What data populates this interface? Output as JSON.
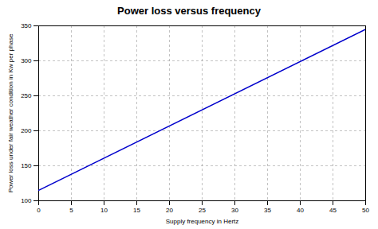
{
  "chart_data": {
    "type": "line",
    "title": "Power loss versus frequency",
    "xlabel": "Supply frequency in Hertz",
    "ylabel": "Power loss under fair weather condition in Kw per phase",
    "x": [
      0,
      50
    ],
    "values": [
      115,
      345
    ],
    "color": "#0000cc",
    "xlim": [
      0,
      50
    ],
    "ylim": [
      100,
      350
    ],
    "xticks": [
      0,
      5,
      10,
      15,
      20,
      25,
      30,
      35,
      40,
      45,
      50
    ],
    "yticks": [
      100,
      150,
      200,
      250,
      300,
      350
    ],
    "grid": true
  }
}
